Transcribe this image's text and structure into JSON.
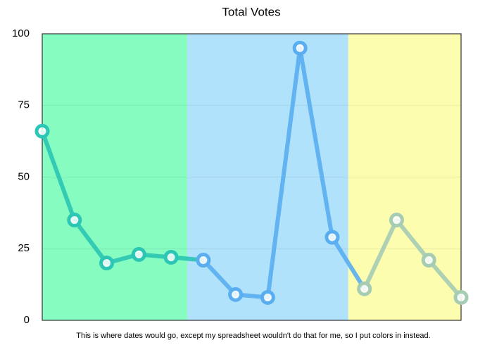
{
  "chart_data": {
    "type": "line",
    "title": "Total Votes",
    "x_label": "This is where dates would go, except my spreadsheet wouldn't do that for me, so I put colors in instead.",
    "categories": [
      null,
      null,
      null,
      null,
      null,
      null,
      null,
      null,
      null,
      null,
      null,
      null,
      null,
      null
    ],
    "series": [
      {
        "name": "Total Votes",
        "values": [
          66,
          35,
          20,
          23,
          22,
          21,
          9,
          8,
          95,
          29,
          11,
          35,
          21,
          8
        ]
      }
    ],
    "bands": [
      {
        "start": 0,
        "end": 4.5,
        "color": "#86fcc0",
        "line_color": "#2cc6b4"
      },
      {
        "start": 4.5,
        "end": 9.5,
        "color": "#b0e2fc",
        "line_color": "#5aaef0"
      },
      {
        "start": 9.5,
        "end": 13,
        "color": "#fdfdb0",
        "line_color": "#a6cdb4"
      }
    ],
    "ylim": [
      0,
      100
    ],
    "yticks": [
      0,
      25,
      50,
      75,
      100
    ],
    "grid": true
  }
}
